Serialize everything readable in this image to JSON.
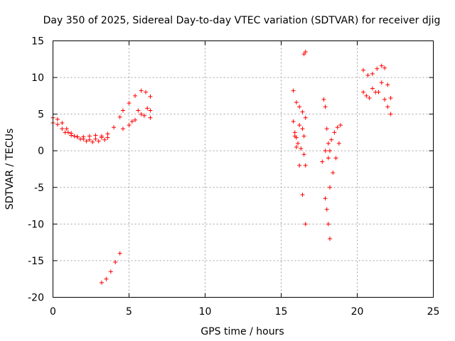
{
  "chart_data": {
    "type": "scatter",
    "title": "Day 350 of 2025, Sidereal Day-to-day VTEC variation (SDTVAR) for receiver djig",
    "xlabel": "GPS time / hours",
    "ylabel": "SDTVAR / TECUs",
    "xlim": [
      0,
      25
    ],
    "ylim": [
      -20,
      15
    ],
    "xticks": [
      "0",
      "5",
      "10",
      "15",
      "20",
      "25"
    ],
    "yticks": [
      "-20",
      "-15",
      "-10",
      "-5",
      "0",
      "5",
      "10",
      "15"
    ],
    "grid": true,
    "marker": "plus",
    "color": "#ff0000",
    "segments": [
      {
        "x": [
          0.0,
          0.3,
          0.6,
          0.9,
          1.2,
          1.6,
          2.0,
          2.4,
          2.8,
          3.2,
          3.6,
          4.0,
          4.4
        ],
        "y": [
          4.5,
          4.3,
          3.8,
          3.0,
          2.4,
          1.9,
          1.6,
          1.5,
          1.6,
          1.8,
          2.3,
          3.2,
          4.6
        ]
      },
      {
        "x": [
          0.0,
          0.3,
          0.6,
          1.0,
          1.4,
          1.8,
          2.2,
          2.6,
          3.0,
          3.4
        ],
        "y": [
          3.8,
          3.6,
          3.0,
          2.5,
          2.0,
          1.6,
          1.3,
          1.2,
          1.3,
          1.5
        ]
      },
      {
        "x": [
          0.8,
          1.2,
          1.6,
          2.0,
          2.4,
          2.8,
          3.2,
          3.6
        ],
        "y": [
          2.5,
          2.1,
          1.9,
          1.9,
          2.0,
          2.1,
          2.0,
          1.8
        ]
      },
      {
        "x": [
          4.6,
          5.0,
          5.4,
          5.8,
          6.1,
          6.4
        ],
        "y": [
          5.5,
          6.5,
          7.5,
          8.2,
          8.0,
          7.4
        ]
      },
      {
        "x": [
          4.6,
          5.0,
          5.4,
          5.8,
          6.2,
          6.4
        ],
        "y": [
          3.0,
          3.5,
          4.2,
          5.0,
          5.8,
          4.5
        ]
      },
      {
        "x": [
          5.2,
          5.6,
          6.0,
          6.4
        ],
        "y": [
          4.0,
          5.5,
          4.8,
          5.5
        ]
      },
      {
        "x": [
          3.2,
          3.5,
          3.8,
          4.1,
          4.4
        ],
        "y": [
          -18.0,
          -17.5,
          -16.5,
          -15.2,
          -14.0
        ]
      },
      {
        "x": [
          15.8,
          16.0,
          16.2,
          16.4,
          16.6
        ],
        "y": [
          8.2,
          6.6,
          6.0,
          5.3,
          4.5
        ]
      },
      {
        "x": [
          15.8,
          15.9,
          16.0,
          16.2,
          16.4,
          16.6
        ],
        "y": [
          4.0,
          2.0,
          0.5,
          -2.0,
          -6.0,
          -10.0
        ]
      },
      {
        "x": [
          15.9,
          16.0,
          16.1,
          16.3,
          16.5,
          16.6
        ],
        "y": [
          2.5,
          1.8,
          1.0,
          0.3,
          -0.5,
          -2.0
        ]
      },
      {
        "x": [
          16.2,
          16.4,
          16.5
        ],
        "y": [
          3.5,
          3.0,
          2.0
        ]
      },
      {
        "x": [
          16.5,
          16.6
        ],
        "y": [
          13.2,
          13.5
        ]
      },
      {
        "x": [
          17.8,
          17.9,
          18.0,
          18.1,
          18.2
        ],
        "y": [
          7.0,
          6.0,
          3.0,
          1.0,
          0.0
        ]
      },
      {
        "x": [
          17.9,
          18.0,
          18.1,
          18.2
        ],
        "y": [
          -6.5,
          -8.0,
          -10.0,
          -12.0
        ]
      },
      {
        "x": [
          17.7,
          17.9,
          18.1
        ],
        "y": [
          -1.5,
          0.0,
          -1.0
        ]
      },
      {
        "x": [
          18.2,
          18.4,
          18.6,
          18.8
        ],
        "y": [
          -5.0,
          -3.0,
          -1.0,
          1.0
        ]
      },
      {
        "x": [
          18.3,
          18.5,
          18.7,
          18.9
        ],
        "y": [
          1.5,
          2.5,
          3.2,
          3.5
        ]
      },
      {
        "x": [
          20.4,
          20.7,
          21.0,
          21.3,
          21.6,
          21.8
        ],
        "y": [
          11.0,
          10.3,
          10.5,
          11.2,
          11.6,
          11.3
        ]
      },
      {
        "x": [
          20.4,
          20.8,
          21.2,
          21.6,
          22.0,
          22.2
        ],
        "y": [
          8.0,
          7.2,
          8.0,
          9.3,
          9.0,
          7.2
        ]
      },
      {
        "x": [
          20.6,
          21.0,
          21.4,
          21.8,
          22.0,
          22.2
        ],
        "y": [
          7.5,
          8.5,
          8.0,
          7.0,
          6.0,
          5.0
        ]
      }
    ]
  }
}
